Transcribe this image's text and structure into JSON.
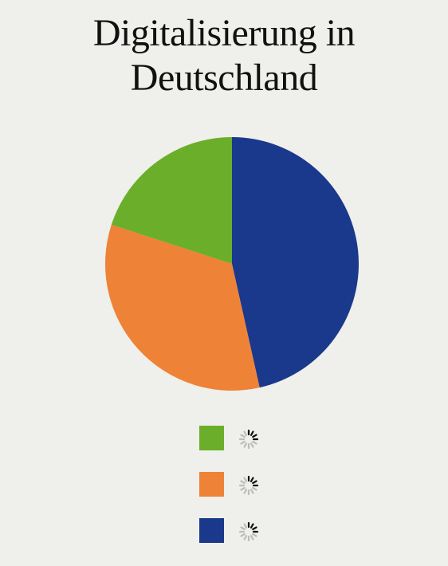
{
  "chart_data": {
    "type": "pie",
    "title": "Digitalisierung in Deutschland",
    "title_lines": [
      "Digitalisierung in",
      "Deutschland"
    ],
    "slices": [
      {
        "value": 46.5,
        "color": "#1a388c"
      },
      {
        "value": 33.5,
        "color": "#ee8236"
      },
      {
        "value": 20.0,
        "color": "#6bae2a"
      }
    ],
    "legend": [
      {
        "color": "#6bae2a",
        "label_icon": "loading-spinner-icon"
      },
      {
        "color": "#ee8236",
        "label_icon": "loading-spinner-icon"
      },
      {
        "color": "#1a388c",
        "label_icon": "loading-spinner-icon"
      }
    ],
    "legend_placement": "bottom"
  }
}
